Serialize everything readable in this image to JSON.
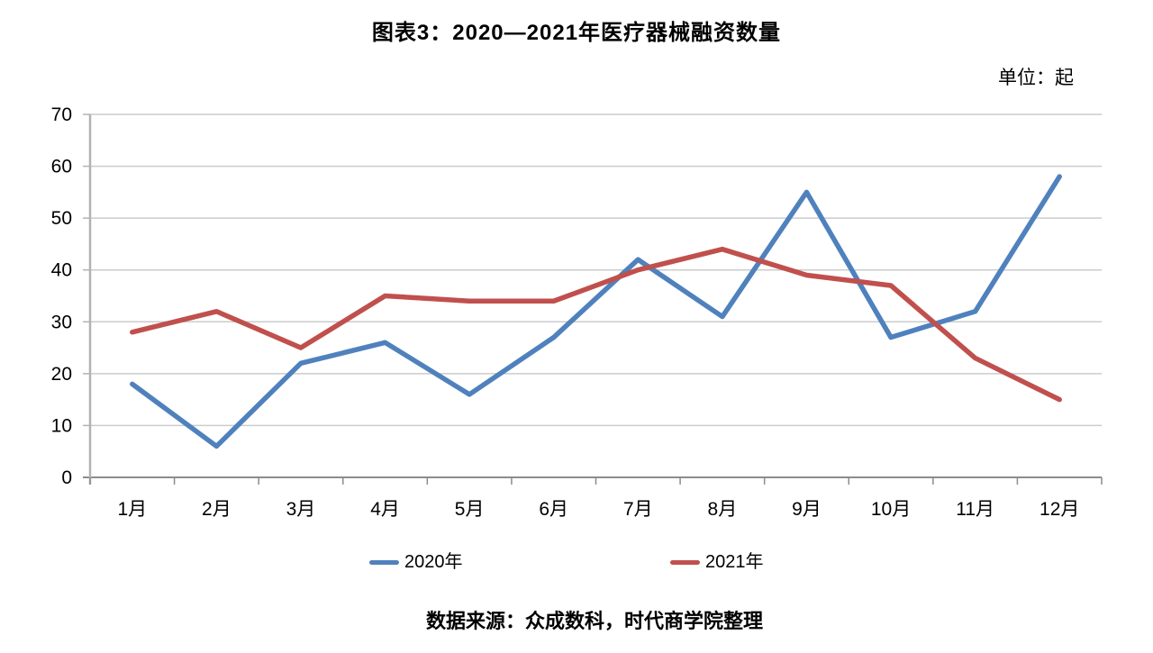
{
  "page": {
    "title": "图表3：2020—2021年医疗器械融资数量",
    "unit_label": "单位：起",
    "source_note": "数据来源：众成数科，时代商学院整理"
  },
  "colors": {
    "series_2020": "#4F81BD",
    "series_2021": "#C0504D",
    "gridline": "#CCCCCC",
    "axis_line": "#B3B3B3",
    "zero_axis": "#8C8C8C",
    "text": "#000000",
    "background": "#FFFFFF"
  },
  "legend": [
    {
      "label": "2020年",
      "color": "#4F81BD"
    },
    {
      "label": "2021年",
      "color": "#C0504D"
    }
  ],
  "chart_data": {
    "type": "line",
    "title": "图表3：2020—2021年医疗器械融资数量",
    "unit": "起",
    "categories": [
      "1月",
      "2月",
      "3月",
      "4月",
      "5月",
      "6月",
      "7月",
      "8月",
      "9月",
      "10月",
      "11月",
      "12月"
    ],
    "series": [
      {
        "name": "2020年",
        "color": "#4F81BD",
        "values": [
          18,
          6,
          22,
          26,
          16,
          27,
          42,
          31,
          55,
          27,
          32,
          58
        ]
      },
      {
        "name": "2021年",
        "color": "#C0504D",
        "values": [
          28,
          32,
          25,
          35,
          34,
          34,
          40,
          44,
          39,
          37,
          23,
          15
        ]
      }
    ],
    "xlabel": "",
    "ylabel": "",
    "ylim": [
      0,
      70
    ],
    "y_ticks": [
      0,
      10,
      20,
      30,
      40,
      50,
      60,
      70
    ],
    "grid": true,
    "legend_position": "bottom"
  }
}
